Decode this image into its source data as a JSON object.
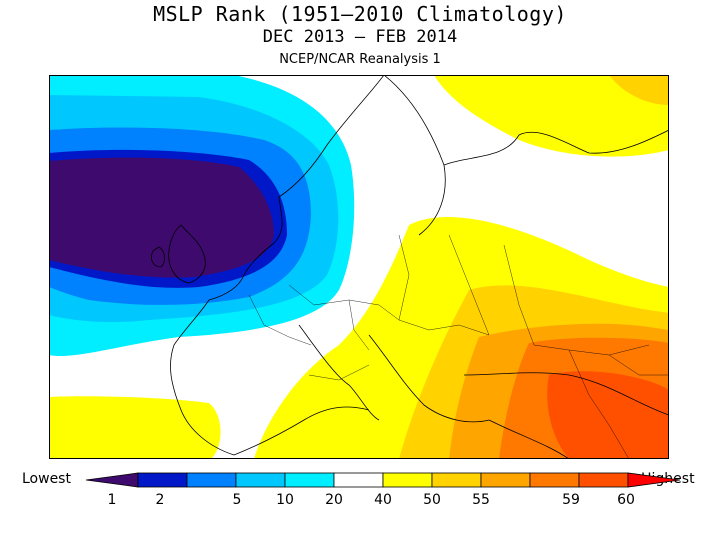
{
  "title": "MSLP Rank (1951–2010 Climatology)",
  "subtitle": "DEC 2013 – FEB 2014",
  "source": "NCEP/NCAR Reanalysis 1",
  "legend": {
    "low_label": "Lowest",
    "high_label": "Highest",
    "ticks": [
      "1",
      "2",
      "5",
      "10",
      "20",
      "40",
      "50",
      "55",
      "59",
      "60"
    ],
    "colors": [
      "#3f0a6e",
      "#0018c8",
      "#0082ff",
      "#00c8ff",
      "#00eeff",
      "#ffffff",
      "#ffff00",
      "#ffd200",
      "#ffa500",
      "#ff7800",
      "#ff5000",
      "#ff0000"
    ]
  },
  "map": {
    "region": "Europe / North Atlantic",
    "colors": {
      "lowest": "#3f0a6e",
      "very_low": "#0018c8",
      "low": "#0082ff",
      "below": "#00c8ff",
      "slightly_below": "#00eeff",
      "neutral": "#ffffff",
      "slightly_above": "#ffff00",
      "above": "#ffd200",
      "high": "#ffa500",
      "very_high": "#ff7800",
      "extreme": "#ff5000"
    }
  }
}
